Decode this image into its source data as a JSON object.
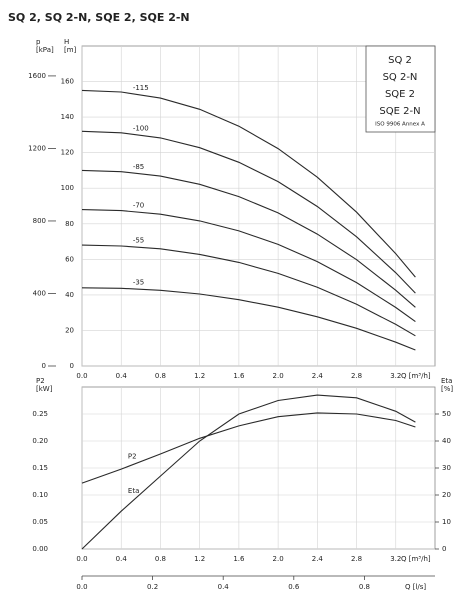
{
  "chart_data": [
    {
      "type": "line",
      "title": "SQ 2, SQ 2-N, SQE 2, SQE 2-N",
      "x": [
        0,
        0.4,
        0.8,
        1.2,
        1.6,
        2.0,
        2.4,
        2.8,
        3.2,
        3.4
      ],
      "xlim": [
        0,
        3.6
      ],
      "xticks": [
        {
          "value": 0,
          "label": "0.0"
        },
        0.4,
        0.8,
        1.2,
        1.6,
        {
          "value": 2,
          "label": "2.0"
        },
        2.4,
        2.8,
        3.2
      ],
      "xlabel": "Q [m³/h]",
      "ylabel": [
        "H",
        "[m]"
      ],
      "ylim": [
        0,
        180
      ],
      "yticks": [
        0,
        20,
        40,
        60,
        80,
        100,
        120,
        140,
        160
      ],
      "y2label": [
        "p",
        "[kPa]"
      ],
      "y2lim": [
        0,
        1765
      ],
      "y2ticks": [
        0,
        400,
        800,
        1200,
        1600
      ],
      "grid": true,
      "box_labels": [
        "SQ 2",
        "SQ 2-N",
        "SQE 2",
        "SQE 2-N"
      ],
      "box_note": "ISO 9906 Annex A",
      "series": [
        {
          "name": "-115",
          "color": "#2a2a2a",
          "values": [
            155,
            154.1,
            150.7,
            144.4,
            134.9,
            122.3,
            106.2,
            86.5,
            63.1,
            50
          ]
        },
        {
          "name": "-100",
          "color": "#2a2a2a",
          "values": [
            132,
            131.2,
            128.3,
            122.8,
            114.6,
            103.7,
            89.7,
            72.7,
            52.4,
            41
          ]
        },
        {
          "name": "-85",
          "color": "#2a2a2a",
          "values": [
            110,
            109.3,
            106.8,
            102.2,
            95.3,
            86.1,
            74.2,
            59.8,
            42.6,
            33
          ]
        },
        {
          "name": "-70",
          "color": "#2a2a2a",
          "values": [
            88,
            87.4,
            85.4,
            81.6,
            76,
            68.4,
            58.7,
            46.9,
            32.9,
            25
          ]
        },
        {
          "name": "-55",
          "color": "#2a2a2a",
          "values": [
            68,
            67.5,
            65.9,
            62.8,
            58.3,
            52.1,
            44.3,
            34.7,
            23.4,
            17
          ]
        },
        {
          "name": "-35",
          "color": "#2a2a2a",
          "values": [
            44,
            43.7,
            42.6,
            40.5,
            37.3,
            33.1,
            27.7,
            21.2,
            13.4,
            9
          ]
        }
      ]
    },
    {
      "type": "line",
      "x": [
        0,
        0.4,
        0.8,
        1.2,
        1.6,
        2.0,
        2.4,
        2.8,
        3.2,
        3.4
      ],
      "xlim": [
        0,
        3.6
      ],
      "xticks": [
        {
          "value": 0,
          "label": "0.0"
        },
        0.4,
        0.8,
        1.2,
        1.6,
        {
          "value": 2,
          "label": "2.0"
        },
        2.4,
        2.8,
        3.2
      ],
      "xlabel": "Q [m³/h]",
      "x2label": "Q [l/s]",
      "x2lim": [
        0,
        1.0
      ],
      "x2ticks": [
        {
          "value": 0,
          "label": "0.0"
        },
        0.2,
        0.4,
        0.6,
        0.8
      ],
      "ylabel": [
        "P2",
        "[kW]"
      ],
      "ylim": [
        0,
        0.3
      ],
      "yticks": [
        {
          "value": 0,
          "label": "0.00"
        },
        {
          "value": 0.05,
          "label": "0.05"
        },
        {
          "value": 0.1,
          "label": "0.10"
        },
        {
          "value": 0.15,
          "label": "0.15"
        },
        {
          "value": 0.2,
          "label": "0.20"
        },
        {
          "value": 0.25,
          "label": "0.25"
        }
      ],
      "y2label": [
        "Eta",
        "[%]"
      ],
      "y2lim": [
        0,
        60
      ],
      "y2ticks": [
        0,
        10,
        20,
        30,
        40,
        50
      ],
      "grid": true,
      "series": [
        {
          "name": "P2",
          "color": "#2a2a2a",
          "values": [
            0.122,
            0.148,
            0.176,
            0.205,
            0.228,
            0.245,
            0.252,
            0.25,
            0.238,
            0.226
          ]
        },
        {
          "name": "Eta",
          "color": "#2a2a2a",
          "axis": "y2",
          "values": [
            0,
            14,
            27,
            40,
            50,
            55,
            57,
            56,
            51,
            47
          ]
        }
      ]
    }
  ]
}
